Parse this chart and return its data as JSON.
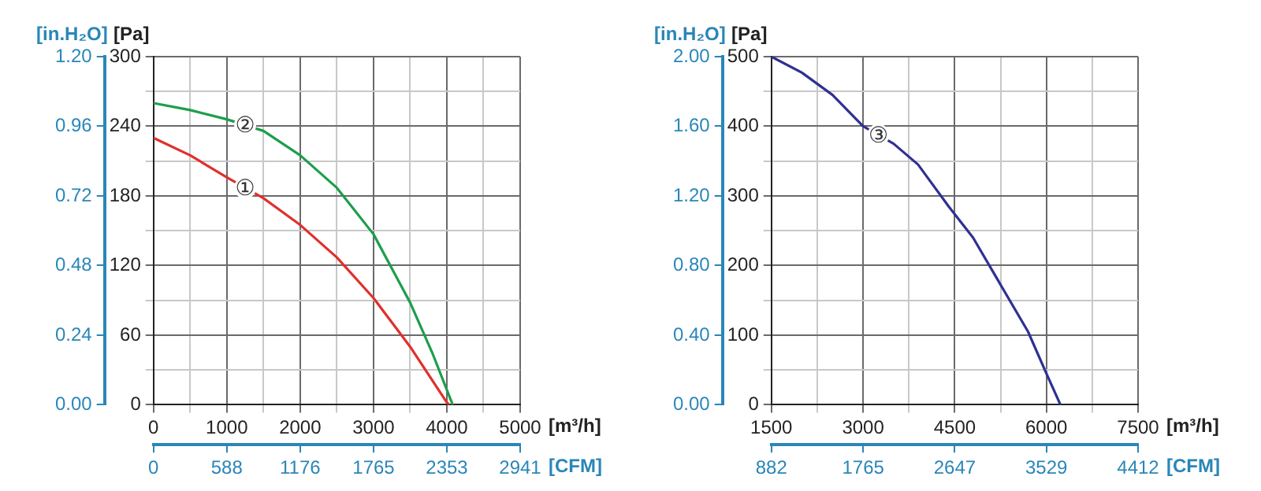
{
  "chart_data": [
    {
      "type": "line",
      "xlabel": "[m³/h]",
      "x2label": "[CFM]",
      "ylabel": "[Pa]",
      "y2label": "[in.H₂O]",
      "xlim": [
        0,
        5000
      ],
      "xticks": [
        0,
        {
          "value": 500,
          "label": null
        },
        1000,
        {
          "value": 1500,
          "label": null
        },
        2000,
        {
          "value": 2500,
          "label": null
        },
        3000,
        {
          "value": 3500,
          "label": null
        },
        4000,
        {
          "value": 4500,
          "label": null
        },
        5000
      ],
      "x2lim": [
        0,
        2941
      ],
      "x2ticks": [
        0,
        588,
        1176,
        1765,
        2353,
        2941
      ],
      "ylim": [
        0,
        300
      ],
      "yticks": [
        0,
        {
          "value": 30,
          "label": null
        },
        60,
        {
          "value": 90,
          "label": null
        },
        120,
        {
          "value": 150,
          "label": null
        },
        180,
        {
          "value": 210,
          "label": null
        },
        240,
        {
          "value": 270,
          "label": null
        },
        300
      ],
      "y2lim": [
        0,
        1.2
      ],
      "y2ticks": [
        {
          "value": 0,
          "label": "0.00"
        },
        {
          "value": 0.24,
          "label": "0.24"
        },
        {
          "value": 0.48,
          "label": "0.48"
        },
        {
          "value": 0.72,
          "label": "0.72"
        },
        {
          "value": 0.96,
          "label": "0.96"
        },
        {
          "value": 1.2,
          "label": "1.20"
        }
      ],
      "grid": true,
      "legend": false,
      "marker": "none",
      "line_style": "solid",
      "series": [
        {
          "name": "①",
          "color": "#e0302c",
          "x": [
            0,
            500,
            1000,
            1500,
            2000,
            2500,
            3000,
            3500,
            4000,
            4030
          ],
          "values": [
            230,
            215,
            196,
            178,
            155,
            127,
            92,
            50,
            2,
            0
          ]
        },
        {
          "name": "②",
          "color": "#1d9e4c",
          "x": [
            0,
            500,
            1000,
            1500,
            2000,
            2500,
            3000,
            3500,
            3800,
            4080
          ],
          "values": [
            260,
            254,
            246,
            236,
            215,
            187,
            147,
            88,
            45,
            0
          ]
        }
      ]
    },
    {
      "type": "line",
      "xlabel": "[m³/h]",
      "x2label": "[CFM]",
      "ylabel": "[Pa]",
      "y2label": "[in.H₂O]",
      "xlim": [
        1500,
        7500
      ],
      "xticks": [
        1500,
        {
          "value": 2250,
          "label": null
        },
        3000,
        {
          "value": 3750,
          "label": null
        },
        4500,
        {
          "value": 5250,
          "label": null
        },
        6000,
        {
          "value": 6750,
          "label": null
        },
        7500
      ],
      "x2lim": [
        882,
        4412
      ],
      "x2ticks": [
        882,
        1765,
        2647,
        3529,
        4412
      ],
      "ylim": [
        0,
        500
      ],
      "yticks": [
        0,
        {
          "value": 50,
          "label": null
        },
        100,
        {
          "value": 150,
          "label": null
        },
        200,
        {
          "value": 250,
          "label": null
        },
        300,
        {
          "value": 350,
          "label": null
        },
        400,
        {
          "value": 450,
          "label": null
        },
        500
      ],
      "y2lim": [
        0,
        2
      ],
      "y2ticks": [
        {
          "value": 0,
          "label": "0.00"
        },
        {
          "value": 0.4,
          "label": "0.40"
        },
        {
          "value": 0.8,
          "label": "0.80"
        },
        {
          "value": 1.2,
          "label": "1.20"
        },
        {
          "value": 1.6,
          "label": "1.60"
        },
        {
          "value": 2,
          "label": "2.00"
        }
      ],
      "grid": true,
      "legend": false,
      "marker": "none",
      "line_style": "solid",
      "series": [
        {
          "name": "③",
          "color": "#2e3192",
          "x": [
            1500,
            2000,
            2500,
            3000,
            3500,
            3900,
            4400,
            4800,
            5200,
            5700,
            6000,
            6230
          ],
          "values": [
            500,
            477,
            445,
            400,
            375,
            345,
            285,
            240,
            180,
            105,
            45,
            0
          ]
        }
      ]
    }
  ]
}
